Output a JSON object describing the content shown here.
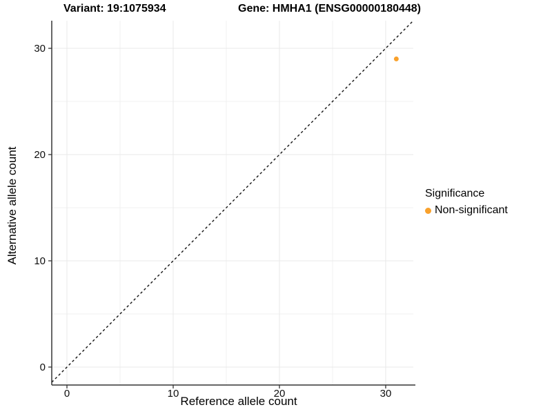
{
  "chart_data": {
    "type": "scatter",
    "title_left": "Variant: 19:1075934",
    "title_right": "Gene: HMHA1 (ENSG00000180448)",
    "xlabel": "Reference allele count",
    "ylabel": "Alternative allele count",
    "xlim": [
      -1.43,
      32.6
    ],
    "ylim": [
      -1.69,
      32.6
    ],
    "x_ticks": [
      0,
      10,
      20,
      30
    ],
    "y_ticks": [
      0,
      10,
      20,
      30
    ],
    "x_minor_ticks": [
      5,
      15,
      25
    ],
    "y_minor_ticks": [
      5,
      15,
      25
    ],
    "grid": "major and minor gridlines, white background",
    "series": [
      {
        "name": "Non-significant",
        "color": "#F9A12C",
        "points": [
          {
            "x": 31,
            "y": 29
          }
        ]
      }
    ],
    "reference_line": {
      "equation": "y = x",
      "style": "dashed",
      "color": "#111111"
    },
    "legend": {
      "title": "Significance",
      "position": "right",
      "items": [
        {
          "label": "Non-significant",
          "color": "#F9A12C"
        }
      ]
    }
  },
  "style": {
    "background_color": "#FFFFFF",
    "axis_line_color": "#333333",
    "tick_color": "#333333",
    "major_grid_color": "#E8E8E8",
    "minor_grid_color": "#F1F1F1",
    "text_color": "#000000",
    "tick_label_color": "#0D0D0D",
    "point_color": "#F9A12C"
  }
}
